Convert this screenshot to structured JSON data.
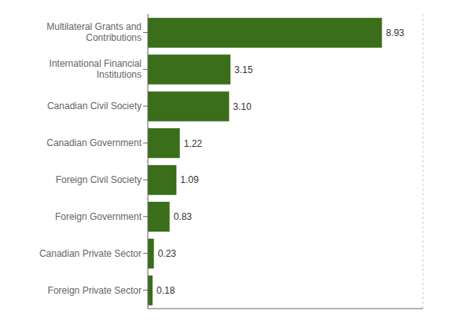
{
  "chart_data": {
    "type": "bar",
    "orientation": "horizontal",
    "categories": [
      "Foreign Private Sector",
      "Canadian Private Sector",
      "Foreign Government",
      "Foreign Civil Society",
      "Canadian Government",
      "Canadian Civil Society",
      "International Financial\nInstitutions",
      "Multilateral Grants and\nContributions"
    ],
    "values": [
      0.18,
      0.23,
      0.83,
      1.09,
      1.22,
      3.1,
      3.15,
      8.93
    ],
    "value_labels": [
      "0.18",
      "0.23",
      "0.83",
      "1.09",
      "1.22",
      "3.10",
      "3.15",
      "8.93"
    ],
    "color": "#3a6e1a",
    "xlim": [
      0,
      10.5
    ],
    "xticks": [
      0,
      2,
      4,
      6,
      8,
      10
    ],
    "grid": true,
    "data_labels": true,
    "tick_labels": "y"
  }
}
